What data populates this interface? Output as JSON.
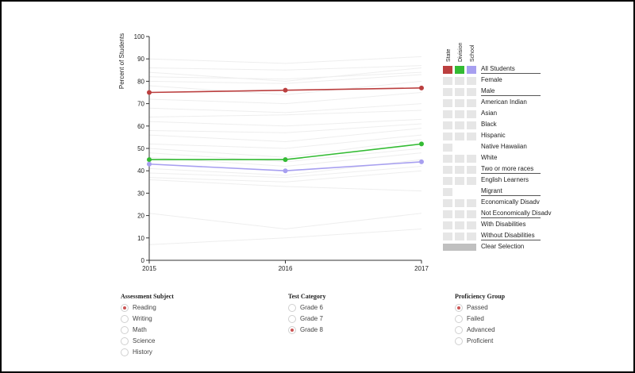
{
  "chart_data": {
    "type": "line",
    "ylabel": "Percent of Students",
    "x": [
      "2015",
      "2016",
      "2017"
    ],
    "ylim": [
      0,
      100
    ],
    "yticks": [
      "0",
      "10",
      "20",
      "30",
      "40",
      "50",
      "60",
      "70",
      "80",
      "90",
      "100"
    ],
    "grid": false,
    "series": [
      {
        "color": "#bb3f3f",
        "values": [
          75,
          76,
          77
        ]
      },
      {
        "color": "#33bb33",
        "values": [
          45,
          45,
          52
        ]
      },
      {
        "color": "#a79ff0",
        "values": [
          43,
          40,
          44
        ]
      }
    ],
    "background_series_color": "#eeeeee",
    "background_series": [
      [
        90,
        88,
        91
      ],
      [
        86,
        85,
        87
      ],
      [
        84,
        80,
        86
      ],
      [
        82,
        81,
        84
      ],
      [
        80,
        79,
        83
      ],
      [
        78,
        74,
        80
      ],
      [
        72,
        70,
        75
      ],
      [
        68,
        66,
        70
      ],
      [
        64,
        65,
        67
      ],
      [
        62,
        60,
        63
      ],
      [
        58,
        57,
        61
      ],
      [
        56,
        53,
        59
      ],
      [
        52,
        50,
        56
      ],
      [
        50,
        46,
        54
      ],
      [
        48,
        44,
        50
      ],
      [
        46,
        42,
        48
      ],
      [
        41,
        38,
        45
      ],
      [
        39,
        37,
        42
      ],
      [
        37,
        35,
        40
      ],
      [
        36,
        33,
        31
      ],
      [
        21,
        14,
        21
      ],
      [
        7,
        10,
        14
      ]
    ]
  },
  "legend": {
    "headers": [
      "State",
      "Division",
      "School"
    ],
    "colors": {
      "state": "#bb3f3f",
      "division": "#33bb33",
      "school": "#a79ff0",
      "empty": "#e6e6e6",
      "clear": "#c0c0c0"
    },
    "rows": [
      {
        "label": "All Students",
        "swatches": 3,
        "active": true,
        "underline": true
      },
      {
        "label": "Female",
        "swatches": 3,
        "underline": false
      },
      {
        "label": "Male",
        "swatches": 3,
        "underline": true
      },
      {
        "label": "American Indian",
        "swatches": 3,
        "underline": false
      },
      {
        "label": "Asian",
        "swatches": 3,
        "underline": false
      },
      {
        "label": "Black",
        "swatches": 3,
        "underline": false
      },
      {
        "label": "Hispanic",
        "swatches": 3,
        "underline": false
      },
      {
        "label": "Native Hawaiian",
        "swatches": 1,
        "underline": false
      },
      {
        "label": "White",
        "swatches": 3,
        "underline": false
      },
      {
        "label": "Two or more races",
        "swatches": 3,
        "underline": true
      },
      {
        "label": "English Learners",
        "swatches": 3,
        "underline": false
      },
      {
        "label": "Migrant",
        "swatches": 1,
        "underline": true
      },
      {
        "label": "Economically Disadv",
        "swatches": 3,
        "underline": false
      },
      {
        "label": "Not Economically Disadv",
        "swatches": 3,
        "underline": true
      },
      {
        "label": "With Disabilities",
        "swatches": 3,
        "underline": false
      },
      {
        "label": "Without Disabilities",
        "swatches": 3,
        "underline": true
      }
    ],
    "clear_label": "Clear Selection"
  },
  "filters": [
    {
      "title": "Assessment Subject",
      "key": "subject",
      "options": [
        {
          "label": "Reading",
          "checked": true
        },
        {
          "label": "Writing",
          "checked": false
        },
        {
          "label": "Math",
          "checked": false
        },
        {
          "label": "Science",
          "checked": false
        },
        {
          "label": "History",
          "checked": false
        }
      ]
    },
    {
      "title": "Test Category",
      "key": "category",
      "options": [
        {
          "label": "Grade 6",
          "checked": false
        },
        {
          "label": "Grade 7",
          "checked": false
        },
        {
          "label": "Grade 8",
          "checked": true
        }
      ]
    },
    {
      "title": "Proficiency Group",
      "key": "proficiency",
      "options": [
        {
          "label": "Passed",
          "checked": true
        },
        {
          "label": "Failed",
          "checked": false
        },
        {
          "label": "Advanced",
          "checked": false
        },
        {
          "label": "Proficient",
          "checked": false
        }
      ]
    }
  ]
}
